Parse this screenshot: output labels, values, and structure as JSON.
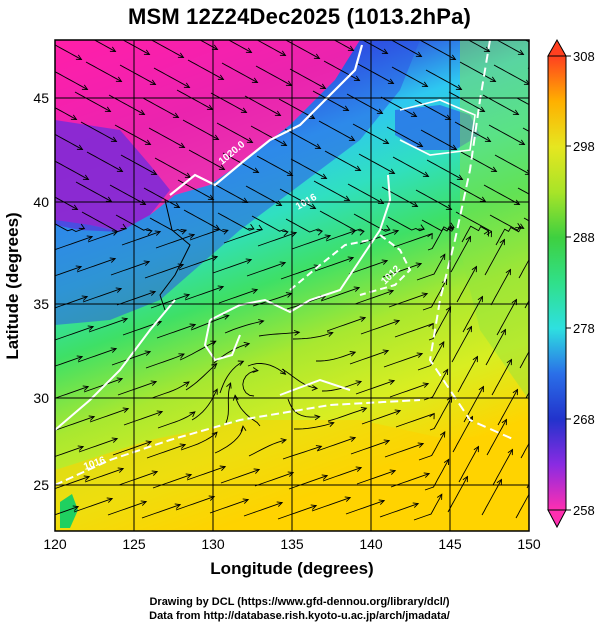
{
  "title": "MSM 12Z24Dec2025 (1013.2hPa)",
  "xlabel": "Longitude (degrees)",
  "ylabel": "Latitude  (degrees)",
  "x_ticks": [
    "120",
    "125",
    "130",
    "135",
    "140",
    "145",
    "150"
  ],
  "y_ticks": [
    "25",
    "30",
    "35",
    "40",
    "45"
  ],
  "colorbar": {
    "ticks": [
      "308",
      "298",
      "288",
      "278",
      "268",
      "258"
    ],
    "min": 258,
    "max": 308
  },
  "contour_labels": [
    "1020.0",
    "1016",
    "1012",
    "1016"
  ],
  "credits": {
    "line1": "Drawing by DCL (https://www.gfd-dennou.org/library/dcl/)",
    "line2": "Data from http://database.rish.kyoto-u.ac.jp/arch/jmadata/"
  },
  "colors": {
    "cold": "#ff1493",
    "cool": "#1e40d8",
    "mid": "#2ee6c8",
    "warm": "#aaee22",
    "hot": "#ffd000",
    "land_outline": "#ffffff",
    "grid": "#000000"
  }
}
